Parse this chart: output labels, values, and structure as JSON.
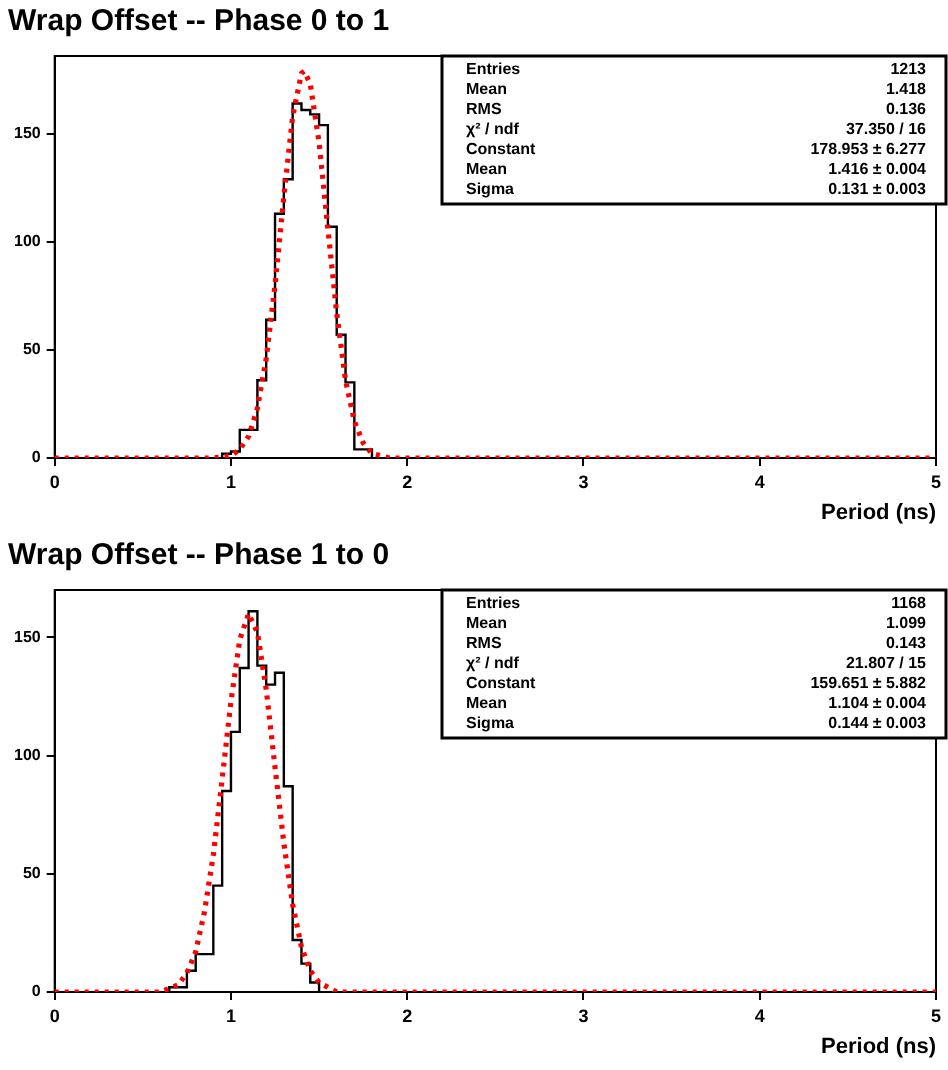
{
  "chart_data": [
    {
      "type": "histogram",
      "title": "Wrap Offset -- Phase 0 to 1",
      "xlabel": "Period (ns)",
      "color": "#000000",
      "bins": [
        0.95,
        1.0,
        1.05,
        1.1,
        1.15,
        1.2,
        1.25,
        1.3,
        1.35,
        1.4,
        1.45,
        1.5,
        1.55,
        1.6,
        1.65,
        1.7,
        1.75,
        1.8
      ],
      "values": [
        2,
        3,
        13,
        13,
        36,
        64,
        113,
        129,
        164,
        161,
        159,
        154,
        107,
        57,
        35,
        4,
        4
      ],
      "series": [
        {
          "type": "line",
          "color": "#ff0000",
          "line_style": "dotted",
          "x": [
            0,
            0.9,
            1.0,
            1.05,
            1.1,
            1.15,
            1.2,
            1.25,
            1.3,
            1.35,
            1.4,
            1.416,
            1.45,
            1.5,
            1.55,
            1.6,
            1.65,
            1.7,
            1.75,
            1.8,
            1.9,
            2.0,
            5
          ],
          "values": [
            0,
            0,
            1,
            4,
            10,
            23,
            46,
            80,
            121,
            158,
            178,
            179,
            173,
            146,
            106,
            67,
            36,
            17,
            7,
            2,
            0,
            0,
            0
          ]
        }
      ],
      "xlim": [
        0,
        5
      ],
      "xticks": [
        0,
        1,
        2,
        3,
        4,
        5
      ],
      "ylim": [
        0,
        186
      ],
      "yticks": [
        0,
        50,
        100,
        150
      ],
      "grid": false,
      "legend": false,
      "annotations": [
        "Entries",
        "1213",
        "Mean",
        "1.418",
        "RMS",
        "0.136",
        "χ² / ndf",
        "37.350 / 16",
        "Constant",
        "178.953 ± 6.277",
        "Mean",
        "1.416 ± 0.004",
        "Sigma",
        "0.131 ± 0.003"
      ]
    },
    {
      "type": "histogram",
      "title": "Wrap Offset -- Phase 1 to 0",
      "xlabel": "Period (ns)",
      "color": "#000000",
      "bins": [
        0.65,
        0.7,
        0.75,
        0.8,
        0.85,
        0.9,
        0.95,
        1.0,
        1.05,
        1.1,
        1.15,
        1.2,
        1.25,
        1.3,
        1.35,
        1.4,
        1.45,
        1.5
      ],
      "values": [
        2,
        2,
        9,
        16,
        16,
        45,
        85,
        110,
        137,
        161,
        138,
        130,
        135,
        87,
        22,
        12,
        4
      ],
      "series": [
        {
          "type": "line",
          "color": "#ff0000",
          "line_style": "dotted",
          "x": [
            0,
            0.6,
            0.7,
            0.75,
            0.8,
            0.85,
            0.9,
            0.95,
            1.0,
            1.05,
            1.1,
            1.15,
            1.2,
            1.25,
            1.3,
            1.35,
            1.4,
            1.45,
            1.5,
            1.6,
            1.7,
            5
          ],
          "values": [
            0,
            0,
            3,
            8,
            17,
            34,
            58,
            90,
            123,
            149,
            160,
            152,
            128,
            95,
            63,
            37,
            19,
            9,
            4,
            0,
            0,
            0
          ]
        }
      ],
      "xlim": [
        0,
        5
      ],
      "xticks": [
        0,
        1,
        2,
        3,
        4,
        5
      ],
      "ylim": [
        0,
        170
      ],
      "yticks": [
        0,
        50,
        100,
        150
      ],
      "grid": false,
      "legend": false,
      "annotations": [
        "Entries",
        "1168",
        "Mean",
        "1.099",
        "RMS",
        "0.143",
        "χ² / ndf",
        "21.807 / 15",
        "Constant",
        "159.651 ± 5.882",
        "Mean",
        "1.104 ± 0.004",
        "Sigma",
        "0.144 ± 0.003"
      ]
    }
  ]
}
